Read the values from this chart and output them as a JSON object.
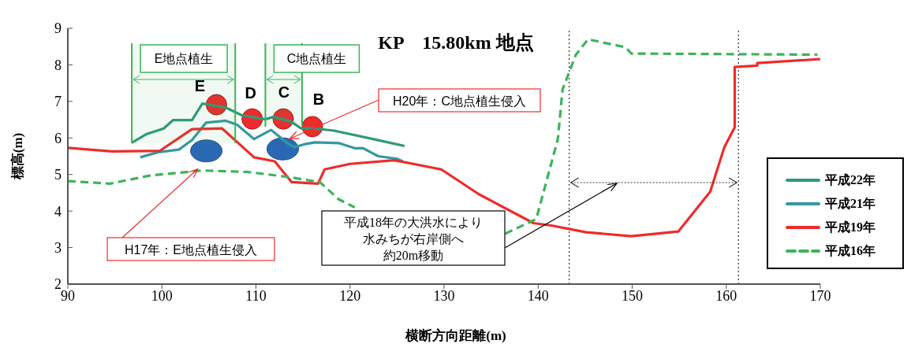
{
  "chart_data": {
    "type": "line",
    "title": "KP　15.80km 地点",
    "xlabel": "横断方向距離(m)",
    "ylabel": "標高(m)",
    "xlim": [
      90,
      170
    ],
    "xticks": [
      90,
      100,
      110,
      120,
      130,
      140,
      150,
      160,
      170
    ],
    "ylim": [
      2,
      9
    ],
    "yticks": [
      2,
      3,
      4,
      5,
      6,
      7,
      8,
      9
    ],
    "legend": "right",
    "marker": "none",
    "series": [
      {
        "name": "平成22年",
        "color": "#2e9a78",
        "line_style": "solid",
        "x": [
          96.8,
          98.4,
          100.2,
          101.2,
          103.2,
          104.3,
          106.8,
          108.5,
          111,
          111.9,
          113.8,
          114.8,
          116.1,
          118.3,
          123,
          125.8
        ],
        "values": [
          5.87,
          6.11,
          6.26,
          6.49,
          6.49,
          6.94,
          6.83,
          6.62,
          6.51,
          6.58,
          6.44,
          6.26,
          6.26,
          6.2,
          5.94,
          5.78
        ]
      },
      {
        "name": "平成21年",
        "color": "#33999f",
        "line_style": "solid",
        "x": [
          97.7,
          99.6,
          101.8,
          103.2,
          104.7,
          106.8,
          108,
          109.8,
          111.6,
          113.5,
          114.1,
          115.2,
          116.3,
          118.8,
          120.5,
          121.4,
          123,
          125,
          125.6
        ],
        "values": [
          5.47,
          5.61,
          5.68,
          5.94,
          6.42,
          6.47,
          6.36,
          5.97,
          6.22,
          5.83,
          5.75,
          5.83,
          5.88,
          5.86,
          5.72,
          5.72,
          5.5,
          5.43,
          5.36
        ]
      },
      {
        "name": "平成19年",
        "color": "#ee2b2b",
        "line_style": "solid",
        "x": [
          90,
          94.7,
          99.8,
          103.2,
          106.4,
          109.8,
          112,
          113.8,
          116.6,
          117.3,
          120,
          124.7,
          129.7,
          133.7,
          139.5,
          141.5,
          145.1,
          149.9,
          154.9,
          158.3,
          159.8,
          160.9,
          160.9,
          163.3,
          163.3,
          170
        ],
        "values": [
          5.73,
          5.63,
          5.65,
          6.24,
          6.26,
          5.47,
          5.36,
          4.79,
          4.75,
          5.14,
          5.29,
          5.39,
          5.14,
          4.46,
          3.67,
          3.6,
          3.42,
          3.31,
          3.44,
          4.53,
          5.75,
          6.29,
          7.94,
          7.98,
          8.05,
          8.16
        ]
      },
      {
        "name": "平成16年",
        "color": "#3cb35a",
        "line_style": "dashed",
        "x": [
          90,
          94.5,
          98.7,
          104.3,
          109.1,
          113.5,
          116.8,
          118.8,
          120.5,
          130,
          136.5,
          139.8,
          140.6,
          142.1,
          142.6,
          144,
          145.3,
          149.3,
          149.9,
          169.7
        ],
        "values": [
          4.82,
          4.75,
          4.97,
          5.11,
          5.07,
          4.93,
          4.79,
          4.32,
          4.1,
          null,
          3.38,
          3.78,
          4.54,
          5.97,
          7.33,
          8.27,
          8.7,
          8.48,
          8.31,
          8.28
        ]
      }
    ],
    "ref_lines": [
      {
        "axis": "x",
        "value": 143.3,
        "line_style": "dotted",
        "color": "#333333"
      },
      {
        "axis": "x",
        "value": 161.3,
        "line_style": "dotted",
        "color": "#333333"
      }
    ],
    "bands": [
      {
        "axis": "x",
        "from": 96.8,
        "to": 107.8,
        "label": "E地点植生",
        "color": "#3cb35a"
      },
      {
        "axis": "x",
        "from": 111,
        "to": 114.9,
        "label": "C地点植生",
        "color": "#3cb35a"
      }
    ],
    "annotations": [
      {
        "text": "E",
        "x": 105.8,
        "y": 6.91
      },
      {
        "text": "D",
        "x": 109.6,
        "y": 6.52
      },
      {
        "text": "C",
        "x": 112.9,
        "y": 6.52
      },
      {
        "text": "B",
        "x": 116,
        "y": 6.31
      },
      {
        "text": "H20年：C地点植生侵入",
        "x": 113.6,
        "y": 5.98
      },
      {
        "text": "H17年：E地点植生侵入",
        "x": 103.8,
        "y": 5.15
      },
      "平成18年の大洪水により水みちが右岸側へ約20m移動"
    ]
  }
}
